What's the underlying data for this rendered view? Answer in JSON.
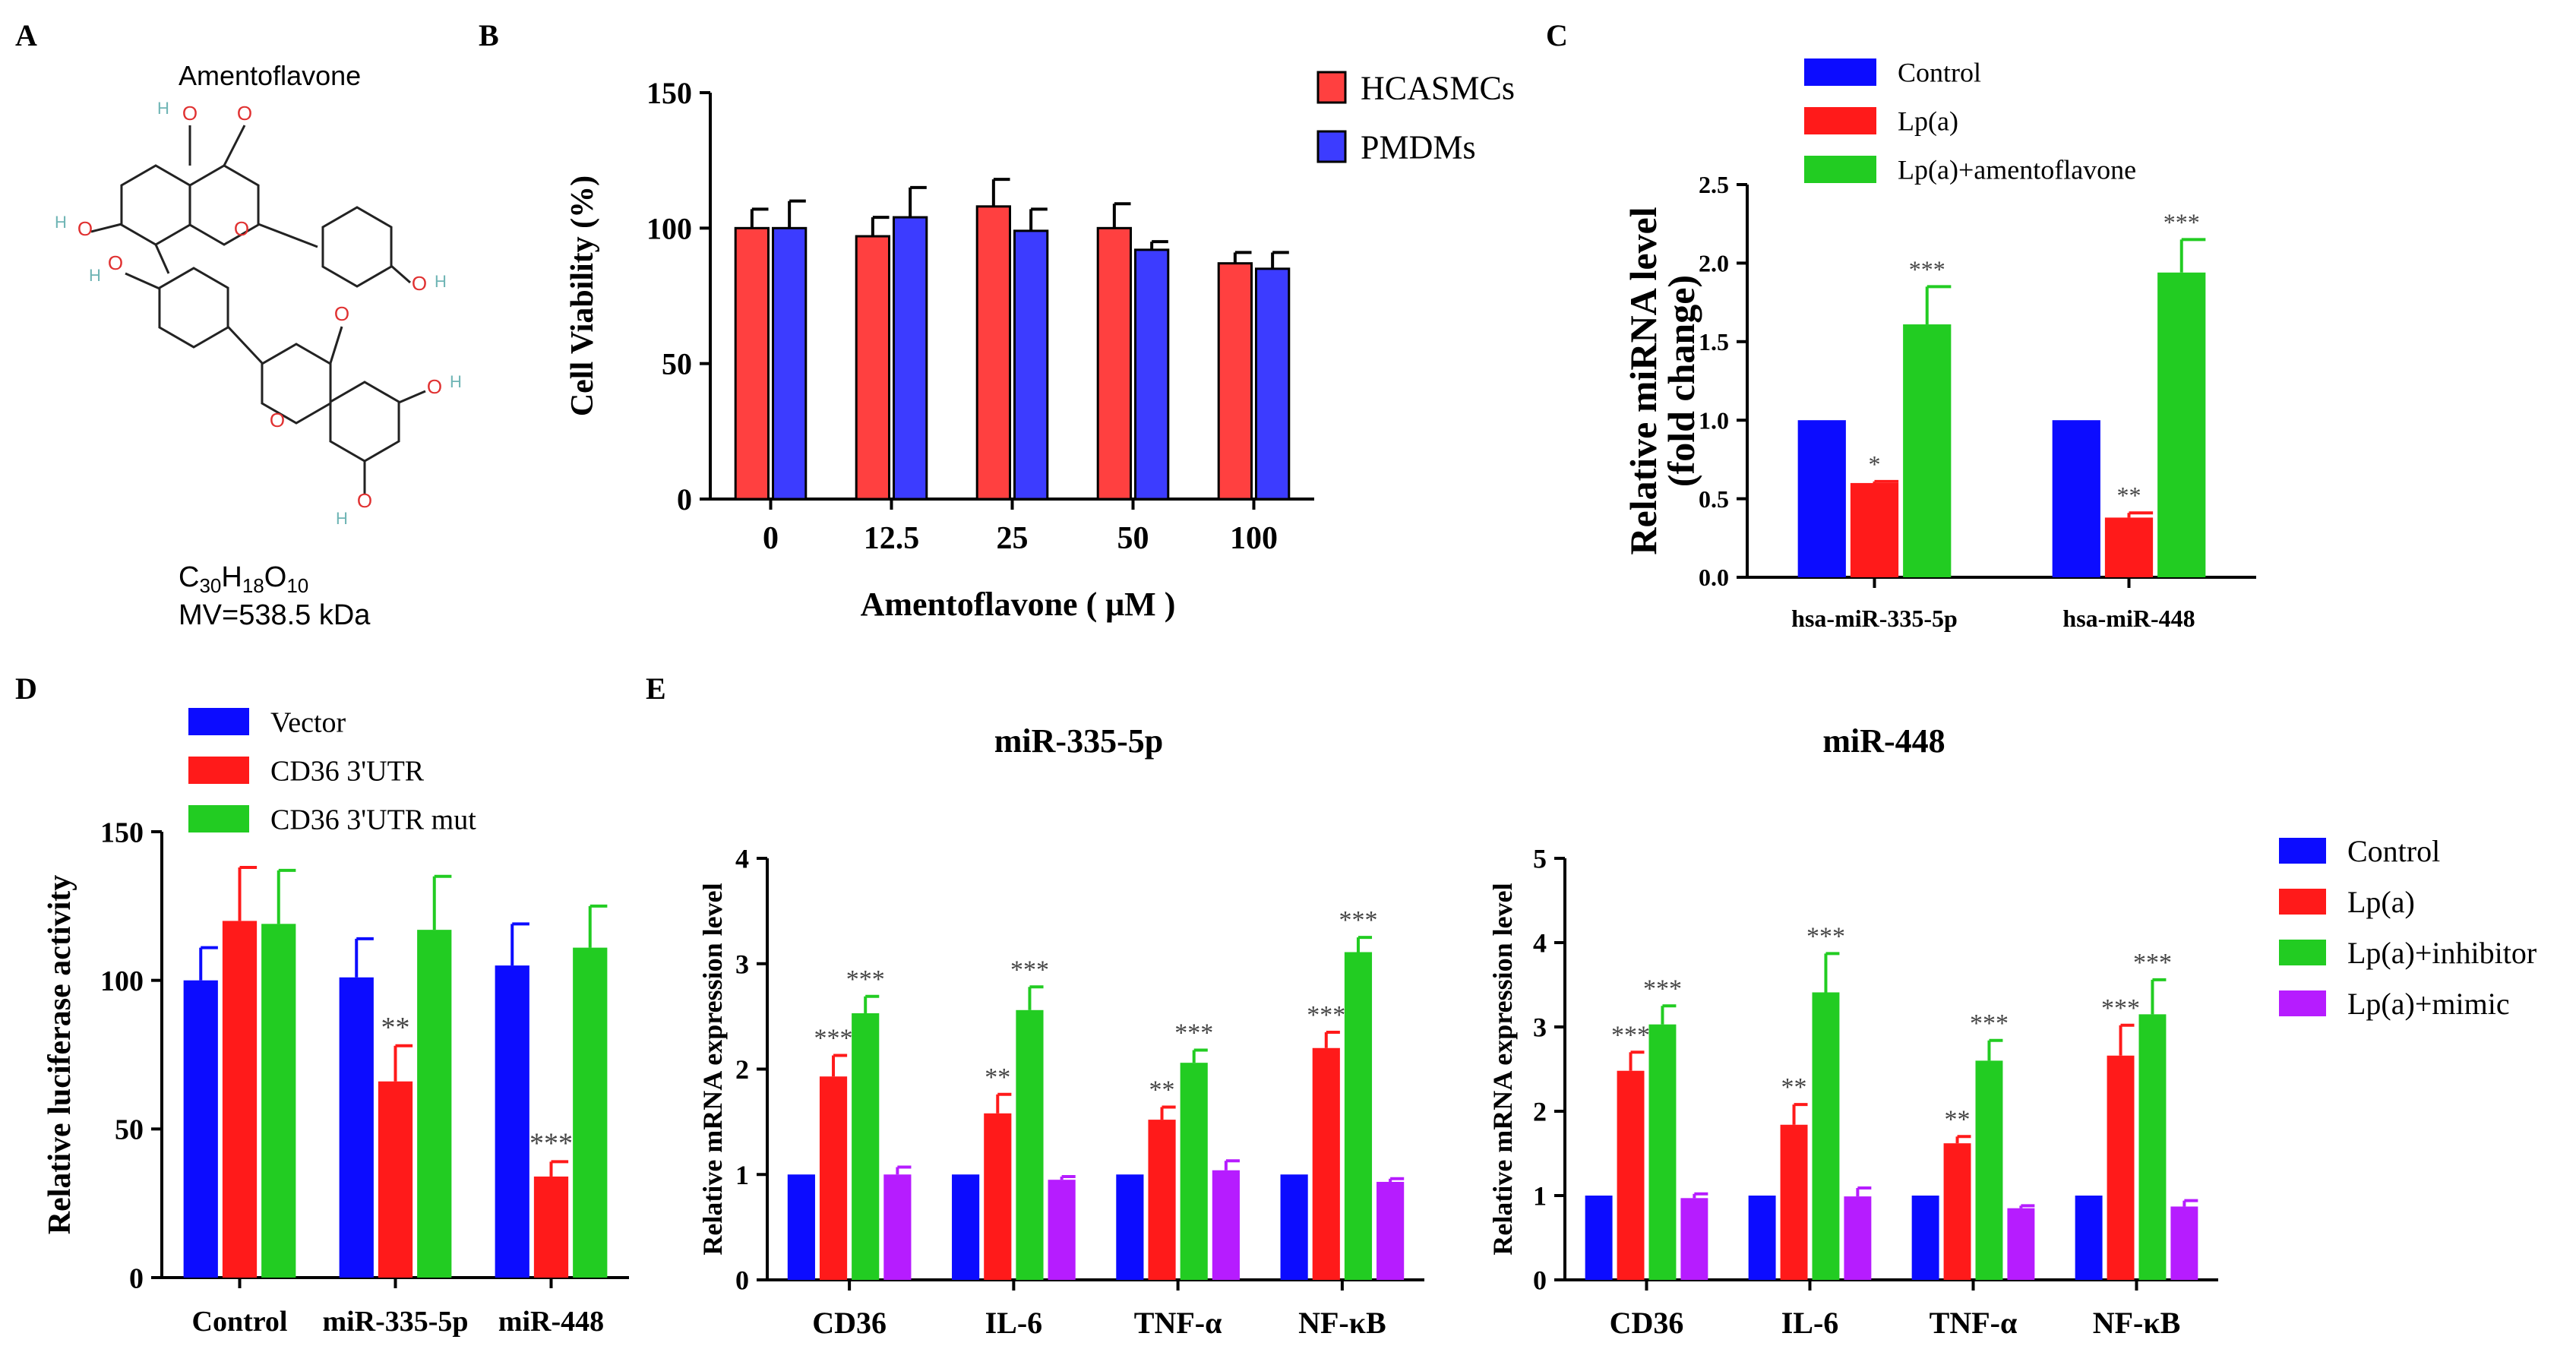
{
  "colors": {
    "red": "#ff4040",
    "blue": "#3c3cff",
    "brightRed": "#ff1a1a",
    "brightBlue": "#0c0cff",
    "green": "#22cc22",
    "purple": "#b61cff",
    "atomO": "#e03030",
    "atomH": "#6fb5b5",
    "bond": "#222222"
  },
  "panelA": {
    "letter": "A",
    "name": "Amentoflavone",
    "formula": {
      "c": "C",
      "c_n": "30",
      "h": "H",
      "h_n": "18",
      "o": "O",
      "o_n": "10"
    },
    "mw": "MV=538.5 kDa",
    "atom_o": "O",
    "atom_h": "H"
  },
  "chart_data": [
    {
      "id": "B",
      "letter": "B",
      "type": "bar",
      "title": "",
      "xlabel": "Amentoflavone ( μM )",
      "ylabel": "Cell Viability (%)",
      "ylim": [
        0,
        150
      ],
      "yticks": [
        "0",
        "50",
        "100",
        "150"
      ],
      "categories": [
        "0",
        "12.5",
        "25",
        "50",
        "100"
      ],
      "series": [
        {
          "name": "HCASMCs",
          "color": "#ff4040",
          "values": [
            100,
            97,
            108,
            100,
            87
          ],
          "errors": [
            7,
            7,
            10,
            9,
            4
          ]
        },
        {
          "name": "PMDMs",
          "color": "#3c3cff",
          "values": [
            100,
            104,
            99,
            92,
            85
          ],
          "errors": [
            10,
            11,
            8,
            3,
            6
          ]
        }
      ],
      "legend": "top-right"
    },
    {
      "id": "C",
      "letter": "C",
      "type": "bar",
      "title": "",
      "xlabel": "",
      "ylabel": "Relative miRNA level",
      "ylabel2": "(fold change)",
      "ylim": [
        0,
        2.5
      ],
      "yticks": [
        "0.0",
        "0.5",
        "1.0",
        "1.5",
        "2.0",
        "2.5"
      ],
      "categories": [
        "hsa-miR-335-5p",
        "hsa-miR-448"
      ],
      "series": [
        {
          "name": "Control",
          "color": "#0c0cff",
          "values": [
            1.0,
            1.0
          ],
          "errors": [
            0,
            0
          ],
          "sig": [
            "",
            ""
          ]
        },
        {
          "name": "Lp(a)",
          "color": "#ff1a1a",
          "values": [
            0.6,
            0.38
          ],
          "errors": [
            0.01,
            0.03
          ],
          "sig": [
            "*",
            "**"
          ]
        },
        {
          "name": "Lp(a)+amentoflavone",
          "color": "#22cc22",
          "values": [
            1.61,
            1.94
          ],
          "errors": [
            0.24,
            0.21
          ],
          "sig": [
            "***",
            "***"
          ]
        }
      ],
      "legend": "top"
    },
    {
      "id": "D",
      "letter": "D",
      "type": "bar",
      "title": "",
      "xlabel": "",
      "ylabel": "Relative luciferase activity",
      "ylim": [
        0,
        150
      ],
      "yticks": [
        "0",
        "50",
        "100",
        "150"
      ],
      "categories": [
        "Control",
        "miR-335-5p",
        "miR-448"
      ],
      "series": [
        {
          "name": "Vector",
          "color": "#0c0cff",
          "values": [
            100,
            101,
            105
          ],
          "errors": [
            11,
            13,
            14
          ],
          "sig": [
            "",
            "",
            ""
          ]
        },
        {
          "name": "CD36 3'UTR",
          "color": "#ff1a1a",
          "values": [
            120,
            66,
            34
          ],
          "errors": [
            18,
            12,
            5
          ],
          "sig": [
            "",
            "**",
            "***"
          ]
        },
        {
          "name": "CD36 3'UTR mut",
          "color": "#22cc22",
          "values": [
            119,
            117,
            111
          ],
          "errors": [
            18,
            18,
            14
          ],
          "sig": [
            "",
            "",
            ""
          ]
        }
      ],
      "legend": "top"
    },
    {
      "id": "E1",
      "letter": "E",
      "type": "bar",
      "title": "miR-335-5p",
      "xlabel": "",
      "ylabel": "Relative mRNA expression level",
      "ylim": [
        0,
        4
      ],
      "yticks": [
        "0",
        "1",
        "2",
        "3",
        "4"
      ],
      "categories": [
        "CD36",
        "IL-6",
        "TNF-α",
        "NF-κB"
      ],
      "series": [
        {
          "name": "Control",
          "color": "#0c0cff",
          "values": [
            1.0,
            1.0,
            1.0,
            1.0
          ],
          "errors": [
            0,
            0,
            0,
            0
          ],
          "sig": [
            "",
            "",
            "",
            ""
          ]
        },
        {
          "name": "Lp(a)",
          "color": "#ff1a1a",
          "values": [
            1.93,
            1.58,
            1.52,
            2.2
          ],
          "errors": [
            0.2,
            0.18,
            0.12,
            0.15
          ],
          "sig": [
            "***",
            "**",
            "**",
            "***"
          ]
        },
        {
          "name": "Lp(a)+inhibitor",
          "color": "#22cc22",
          "values": [
            2.53,
            2.56,
            2.06,
            3.11
          ],
          "errors": [
            0.16,
            0.22,
            0.12,
            0.14
          ],
          "sig": [
            "***",
            "***",
            "***",
            "***"
          ]
        },
        {
          "name": "Lp(a)+mimic",
          "color": "#b61cff",
          "values": [
            1.0,
            0.95,
            1.04,
            0.93
          ],
          "errors": [
            0.07,
            0.03,
            0.09,
            0.03
          ],
          "sig": [
            "",
            "",
            "",
            ""
          ]
        }
      ],
      "legend": "none"
    },
    {
      "id": "E2",
      "letter": "",
      "type": "bar",
      "title": "miR-448",
      "xlabel": "",
      "ylabel": "Relative mRNA expression level",
      "ylim": [
        0,
        5
      ],
      "yticks": [
        "0",
        "1",
        "2",
        "3",
        "4",
        "5"
      ],
      "categories": [
        "CD36",
        "IL-6",
        "TNF-α",
        "NF-κB"
      ],
      "series": [
        {
          "name": "Control",
          "color": "#0c0cff",
          "values": [
            1.0,
            1.0,
            1.0,
            1.0
          ],
          "errors": [
            0,
            0,
            0,
            0
          ],
          "sig": [
            "",
            "",
            "",
            ""
          ]
        },
        {
          "name": "Lp(a)",
          "color": "#ff1a1a",
          "values": [
            2.48,
            1.84,
            1.62,
            2.66
          ],
          "errors": [
            0.22,
            0.24,
            0.08,
            0.36
          ],
          "sig": [
            "***",
            "**",
            "**",
            "***"
          ]
        },
        {
          "name": "Lp(a)+inhibitor",
          "color": "#22cc22",
          "values": [
            3.03,
            3.41,
            2.6,
            3.15
          ],
          "errors": [
            0.22,
            0.46,
            0.24,
            0.41
          ],
          "sig": [
            "***",
            "***",
            "***",
            "***"
          ]
        },
        {
          "name": "Lp(a)+mimic",
          "color": "#b61cff",
          "values": [
            0.97,
            0.99,
            0.85,
            0.87
          ],
          "errors": [
            0.05,
            0.1,
            0.03,
            0.07
          ],
          "sig": [
            "",
            "",
            "",
            ""
          ]
        }
      ],
      "legend": "right"
    }
  ]
}
